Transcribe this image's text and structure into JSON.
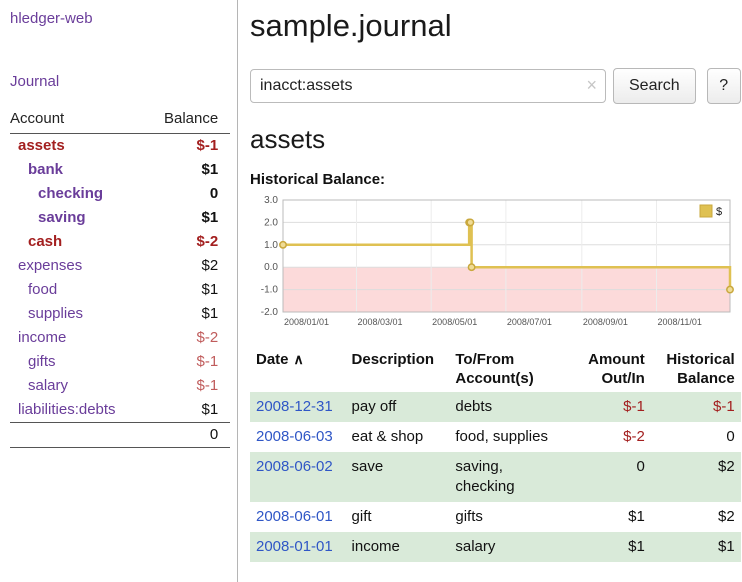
{
  "sidebar": {
    "app_title": "hledger-web",
    "journal_label": "Journal",
    "accounts": {
      "header_account": "Account",
      "header_balance": "Balance",
      "rows": [
        {
          "name": "assets",
          "balance": "$-1",
          "indent": 0,
          "emph": true,
          "name_negative": true,
          "balance_negative": "strong"
        },
        {
          "name": "bank",
          "balance": "$1",
          "indent": 1,
          "emph": true
        },
        {
          "name": "checking",
          "balance": "0",
          "indent": 2,
          "emph": true
        },
        {
          "name": "saving",
          "balance": "$1",
          "indent": 2,
          "emph": true
        },
        {
          "name": "cash",
          "balance": "$-2",
          "indent": 1,
          "emph": true,
          "name_negative": true,
          "balance_negative": "strong"
        },
        {
          "name": "expenses",
          "balance": "$2",
          "indent": 0
        },
        {
          "name": "food",
          "balance": "$1",
          "indent": 1
        },
        {
          "name": "supplies",
          "balance": "$1",
          "indent": 1
        },
        {
          "name": "income",
          "balance": "$-2",
          "indent": 0,
          "balance_negative": "muted"
        },
        {
          "name": "gifts",
          "balance": "$-1",
          "indent": 1,
          "balance_negative": "muted"
        },
        {
          "name": "salary",
          "balance": "$-1",
          "indent": 1,
          "balance_negative": "muted"
        },
        {
          "name": "liabilities:debts",
          "balance": "$1",
          "indent": 0
        }
      ],
      "total": "0"
    }
  },
  "main": {
    "title": "sample.journal",
    "search": {
      "query": "inacct:assets",
      "clear_icon": "×",
      "button_label": "Search",
      "help_label": "?"
    },
    "account_heading": "assets",
    "chart_label": "Historical Balance:",
    "register": {
      "sort_icon": "∧",
      "headers": [
        {
          "lines": [
            "Date"
          ],
          "sort": true,
          "align": "left"
        },
        {
          "lines": [
            "Description"
          ],
          "align": "left"
        },
        {
          "lines": [
            "To/From",
            "Account(s)"
          ],
          "align": "left"
        },
        {
          "lines": [
            "Amount",
            "Out/In"
          ],
          "align": "right"
        },
        {
          "lines": [
            "Historical",
            "Balance"
          ],
          "align": "right"
        }
      ],
      "rows": [
        {
          "date": "2008-12-31",
          "description": "pay off",
          "accounts": [
            "debts"
          ],
          "amount": "$-1",
          "amount_negative": true,
          "balance": "$-1",
          "balance_negative": true
        },
        {
          "date": "2008-06-03",
          "description": "eat & shop",
          "accounts": [
            "food, supplies"
          ],
          "amount": "$-2",
          "amount_negative": true,
          "balance": "0"
        },
        {
          "date": "2008-06-02",
          "description": "save",
          "accounts": [
            "saving,",
            "checking"
          ],
          "amount": "0",
          "balance": "$2"
        },
        {
          "date": "2008-06-01",
          "description": "gift",
          "accounts": [
            "gifts"
          ],
          "amount": "$1",
          "balance": "$2"
        },
        {
          "date": "2008-01-01",
          "description": "income",
          "accounts": [
            "salary"
          ],
          "amount": "$1",
          "balance": "$1"
        }
      ]
    }
  },
  "chart_data": {
    "type": "line",
    "step": true,
    "title": "Historical Balance",
    "series": [
      {
        "name": "$",
        "points": [
          [
            "2008-01-01",
            1.0
          ],
          [
            "2008-06-01",
            2.0
          ],
          [
            "2008-06-02",
            2.0
          ],
          [
            "2008-06-03",
            0.0
          ],
          [
            "2008-12-31",
            -1.0
          ]
        ]
      }
    ],
    "ylim": [
      -2.0,
      3.0
    ],
    "yticks": [
      3.0,
      2.0,
      1.0,
      0.0,
      -1.0,
      -2.0
    ],
    "xticks": [
      "2008/01/01",
      "2008/03/01",
      "2008/05/01",
      "2008/07/01",
      "2008/09/01",
      "2008/11/01"
    ],
    "xrange": [
      "2008-01-01",
      "2008-12-31"
    ],
    "legend": {
      "position": "top-right",
      "label": "$"
    },
    "colors": {
      "line": "#dfc152",
      "marker_fill": "#f0dc96",
      "marker_stroke": "#c9a83e",
      "negative_area": "#fcdada",
      "grid": "#dddddd",
      "border": "#bbbbbb"
    }
  },
  "colors": {
    "link_purple": "#6a3d9a",
    "link_blue": "#2f56c6",
    "negative_strong": "#a31f1f",
    "negative_muted": "#c05c5c",
    "row_green": "#d9ead9"
  }
}
